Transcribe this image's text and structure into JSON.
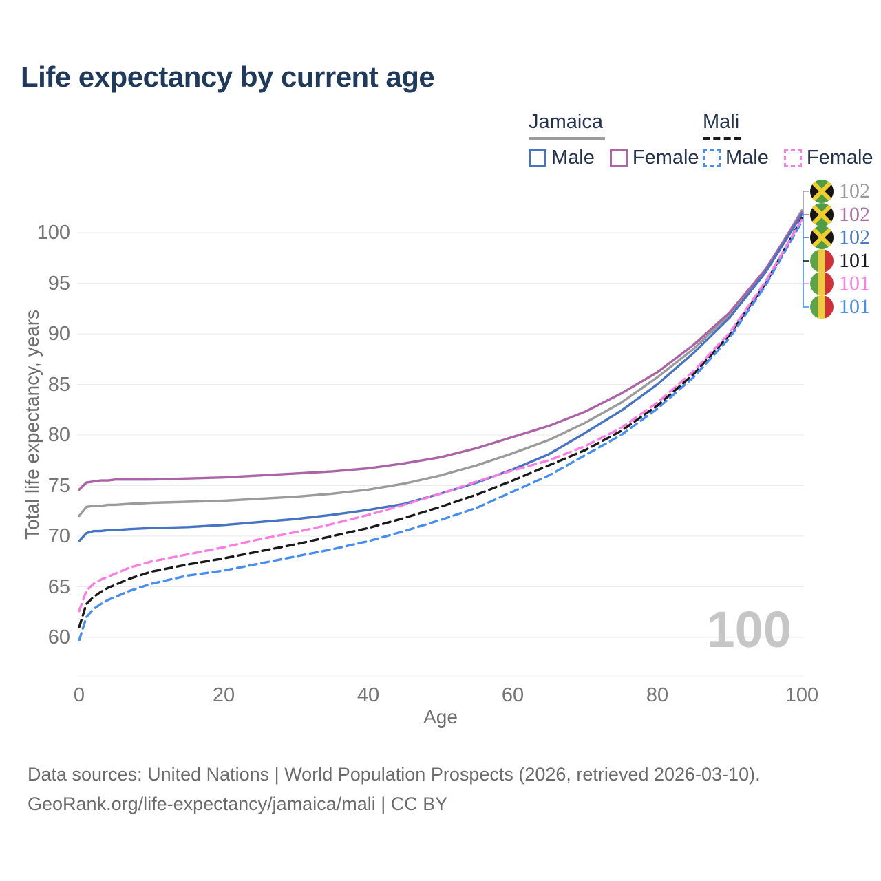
{
  "title": "Life expectancy by current age",
  "legend": {
    "groups": [
      {
        "id": "jamaica",
        "label": "Jamaica",
        "line_style": "solid",
        "underline_color": "#9b9b9b",
        "items": [
          {
            "id": "jamaica-male",
            "label": "Male",
            "color": "#4673c2",
            "dashed": false
          },
          {
            "id": "jamaica-female",
            "label": "Female",
            "color": "#ab64a5",
            "dashed": false
          }
        ]
      },
      {
        "id": "mali",
        "label": "Mali",
        "line_style": "dashed",
        "underline_color": "#1a1a1a",
        "items": [
          {
            "id": "mali-male",
            "label": "Male",
            "color": "#478df2",
            "dashed": true
          },
          {
            "id": "mali-female",
            "label": "Female",
            "color": "#fb7ee0",
            "dashed": true
          }
        ]
      }
    ]
  },
  "chart_data": {
    "type": "line",
    "title": "Life expectancy by current age",
    "xlabel": "Age",
    "ylabel": "Total life expectancy, years",
    "x_ticks": [
      0,
      20,
      40,
      60,
      80,
      100
    ],
    "y_ticks": [
      60,
      65,
      70,
      75,
      80,
      85,
      90,
      95,
      100
    ],
    "xlim": [
      0,
      100
    ],
    "ylim": [
      58.5,
      103
    ],
    "grid": true,
    "legend_position": "top-right",
    "watermark": "100",
    "watermark_color": "#c6c6c6",
    "grid_color": "#eaeaea",
    "axis_text_color": "#757575",
    "ages": [
      0,
      1,
      2,
      3,
      4,
      5,
      7,
      10,
      15,
      20,
      25,
      30,
      35,
      40,
      45,
      50,
      55,
      60,
      65,
      70,
      75,
      80,
      85,
      90,
      95,
      100
    ],
    "series": [
      {
        "id": "jamaica-total",
        "name": "Jamaica Total",
        "country": "jamaica",
        "sex": "total",
        "color": "#9b9b9b",
        "dashed": false,
        "end_label": "102",
        "end_color": "#9b9b9b",
        "values": [
          72.0,
          72.9,
          73.0,
          73.0,
          73.1,
          73.1,
          73.2,
          73.3,
          73.4,
          73.5,
          73.7,
          73.9,
          74.2,
          74.6,
          75.2,
          76.0,
          77.0,
          78.2,
          79.5,
          81.2,
          83.2,
          85.7,
          88.5,
          91.9,
          96.2,
          102.2
        ]
      },
      {
        "id": "jamaica-female",
        "name": "Jamaica Female",
        "country": "jamaica",
        "sex": "female",
        "color": "#ab64a5",
        "dashed": false,
        "end_label": "102",
        "end_color": "#a96fa9",
        "values": [
          74.6,
          75.3,
          75.4,
          75.5,
          75.5,
          75.6,
          75.6,
          75.6,
          75.7,
          75.8,
          76.0,
          76.2,
          76.4,
          76.7,
          77.2,
          77.8,
          78.7,
          79.8,
          80.9,
          82.3,
          84.1,
          86.2,
          88.9,
          92.1,
          96.4,
          102.0
        ]
      },
      {
        "id": "jamaica-male",
        "name": "Jamaica Male",
        "country": "jamaica",
        "sex": "male",
        "color": "#4673c2",
        "dashed": false,
        "end_label": "102",
        "end_color": "#4a79c5",
        "values": [
          69.5,
          70.3,
          70.5,
          70.5,
          70.6,
          70.6,
          70.7,
          70.8,
          70.9,
          71.1,
          71.4,
          71.7,
          72.1,
          72.6,
          73.2,
          74.2,
          75.3,
          76.6,
          78.1,
          80.2,
          82.4,
          85.0,
          88.1,
          91.6,
          96.1,
          101.8
        ]
      },
      {
        "id": "mali-total",
        "name": "Mali Total",
        "country": "mali",
        "sex": "total",
        "color": "#1a1a1a",
        "dashed": true,
        "end_label": "101",
        "end_color": "#1a1a1a",
        "values": [
          61.0,
          63.3,
          64.0,
          64.5,
          64.9,
          65.2,
          65.8,
          66.5,
          67.2,
          67.8,
          68.5,
          69.2,
          70.0,
          70.8,
          71.8,
          72.9,
          74.1,
          75.5,
          77.0,
          78.5,
          80.4,
          82.9,
          86.0,
          89.9,
          95.0,
          101.4
        ]
      },
      {
        "id": "mali-female",
        "name": "Mali Female",
        "country": "mali",
        "sex": "female",
        "color": "#fb7ee0",
        "dashed": true,
        "end_label": "101",
        "end_color": "#fb7ee0",
        "values": [
          62.6,
          64.6,
          65.3,
          65.7,
          66.0,
          66.3,
          66.9,
          67.5,
          68.2,
          68.9,
          69.7,
          70.4,
          71.2,
          72.1,
          73.1,
          74.2,
          75.4,
          76.5,
          77.5,
          78.9,
          80.7,
          83.2,
          86.3,
          90.1,
          95.2,
          101.3
        ]
      },
      {
        "id": "mali-male",
        "name": "Mali Male",
        "country": "mali",
        "sex": "male",
        "color": "#478df2",
        "dashed": true,
        "end_label": "101",
        "end_color": "#478df2",
        "values": [
          59.7,
          62.0,
          62.8,
          63.3,
          63.7,
          64.0,
          64.6,
          65.3,
          66.1,
          66.6,
          67.3,
          68.0,
          68.7,
          69.5,
          70.5,
          71.6,
          72.8,
          74.4,
          76.0,
          78.0,
          80.0,
          82.6,
          85.7,
          89.6,
          94.8,
          101.1
        ]
      }
    ]
  },
  "flags": {
    "jamaica": {
      "green": "#4f9e45",
      "black": "#151515",
      "gold": "#f2ce2d"
    },
    "mali": {
      "green": "#5ba548",
      "yellow": "#eecb42",
      "red": "#d13038"
    }
  },
  "footer": {
    "line1": "Data sources: United Nations | World Population Prospects (2026, retrieved 2026-03-10).",
    "line2": "GeoRank.org/life-expectancy/jamaica/mali | CC BY"
  }
}
